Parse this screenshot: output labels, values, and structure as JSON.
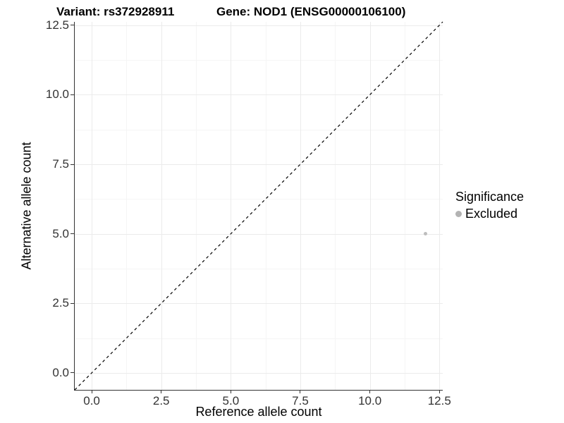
{
  "chart_data": {
    "type": "scatter",
    "title_left": "Variant: rs372928911",
    "title_right": "Gene: NOD1 (ENSG00000106100)",
    "xlabel": "Reference allele count",
    "ylabel": "Alternative allele count",
    "xlim": [
      -0.61,
      12.62
    ],
    "ylim": [
      -0.61,
      12.62
    ],
    "ticks": {
      "values": [
        0,
        2.5,
        5,
        7.5,
        10,
        12.5
      ],
      "labels": [
        "0.0",
        "2.5",
        "5.0",
        "7.5",
        "10.0",
        "12.5"
      ]
    },
    "minor_tick_values": [
      1.25,
      3.75,
      6.25,
      8.75,
      11.25
    ],
    "grid": "major+minor",
    "identity_line": {
      "style": "dashed",
      "color": "#000000",
      "from": -0.61,
      "to": 12.62
    },
    "series": [
      {
        "name": "Excluded",
        "color": "#bdbdbd",
        "points": [
          {
            "x": 12,
            "y": 5
          }
        ]
      }
    ],
    "legend": {
      "title": "Significance",
      "position": "right",
      "entries": [
        {
          "label": "Excluded",
          "color": "#b3b3b3"
        }
      ]
    }
  },
  "styles": {
    "major_grid_color": "#ebebeb",
    "minor_grid_color": "#f5f5f5",
    "axis_line_color": "#333333",
    "tick_label_color": "#333333",
    "title_color": "#000000"
  }
}
